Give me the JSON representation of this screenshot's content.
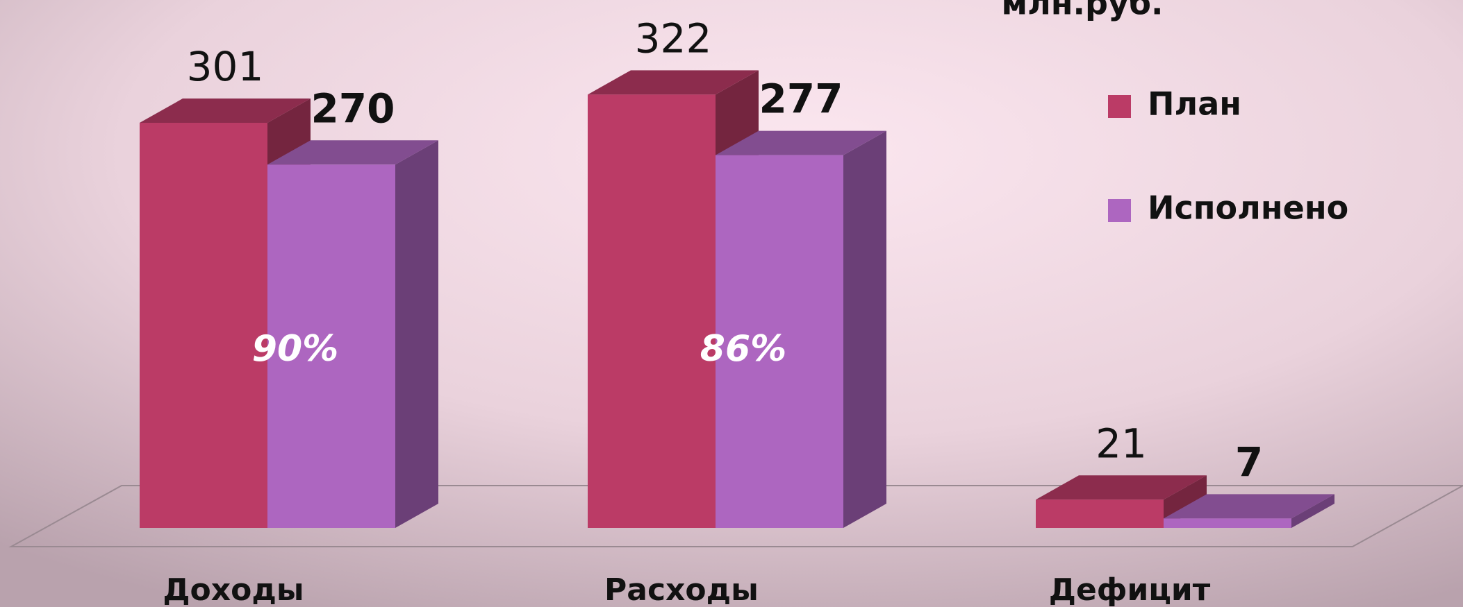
{
  "chart_data": {
    "type": "bar3d",
    "title": "млн.руб.",
    "categories": [
      "Доходы",
      "Расходы",
      "Дефицит"
    ],
    "series": [
      {
        "name": "План",
        "color": "#bb3b66",
        "values": [
          301,
          322,
          21
        ]
      },
      {
        "name": "Исполнено",
        "color": "#ad66c0",
        "values": [
          270,
          277,
          7
        ]
      }
    ],
    "annotations": [
      "90%",
      "86%"
    ]
  }
}
